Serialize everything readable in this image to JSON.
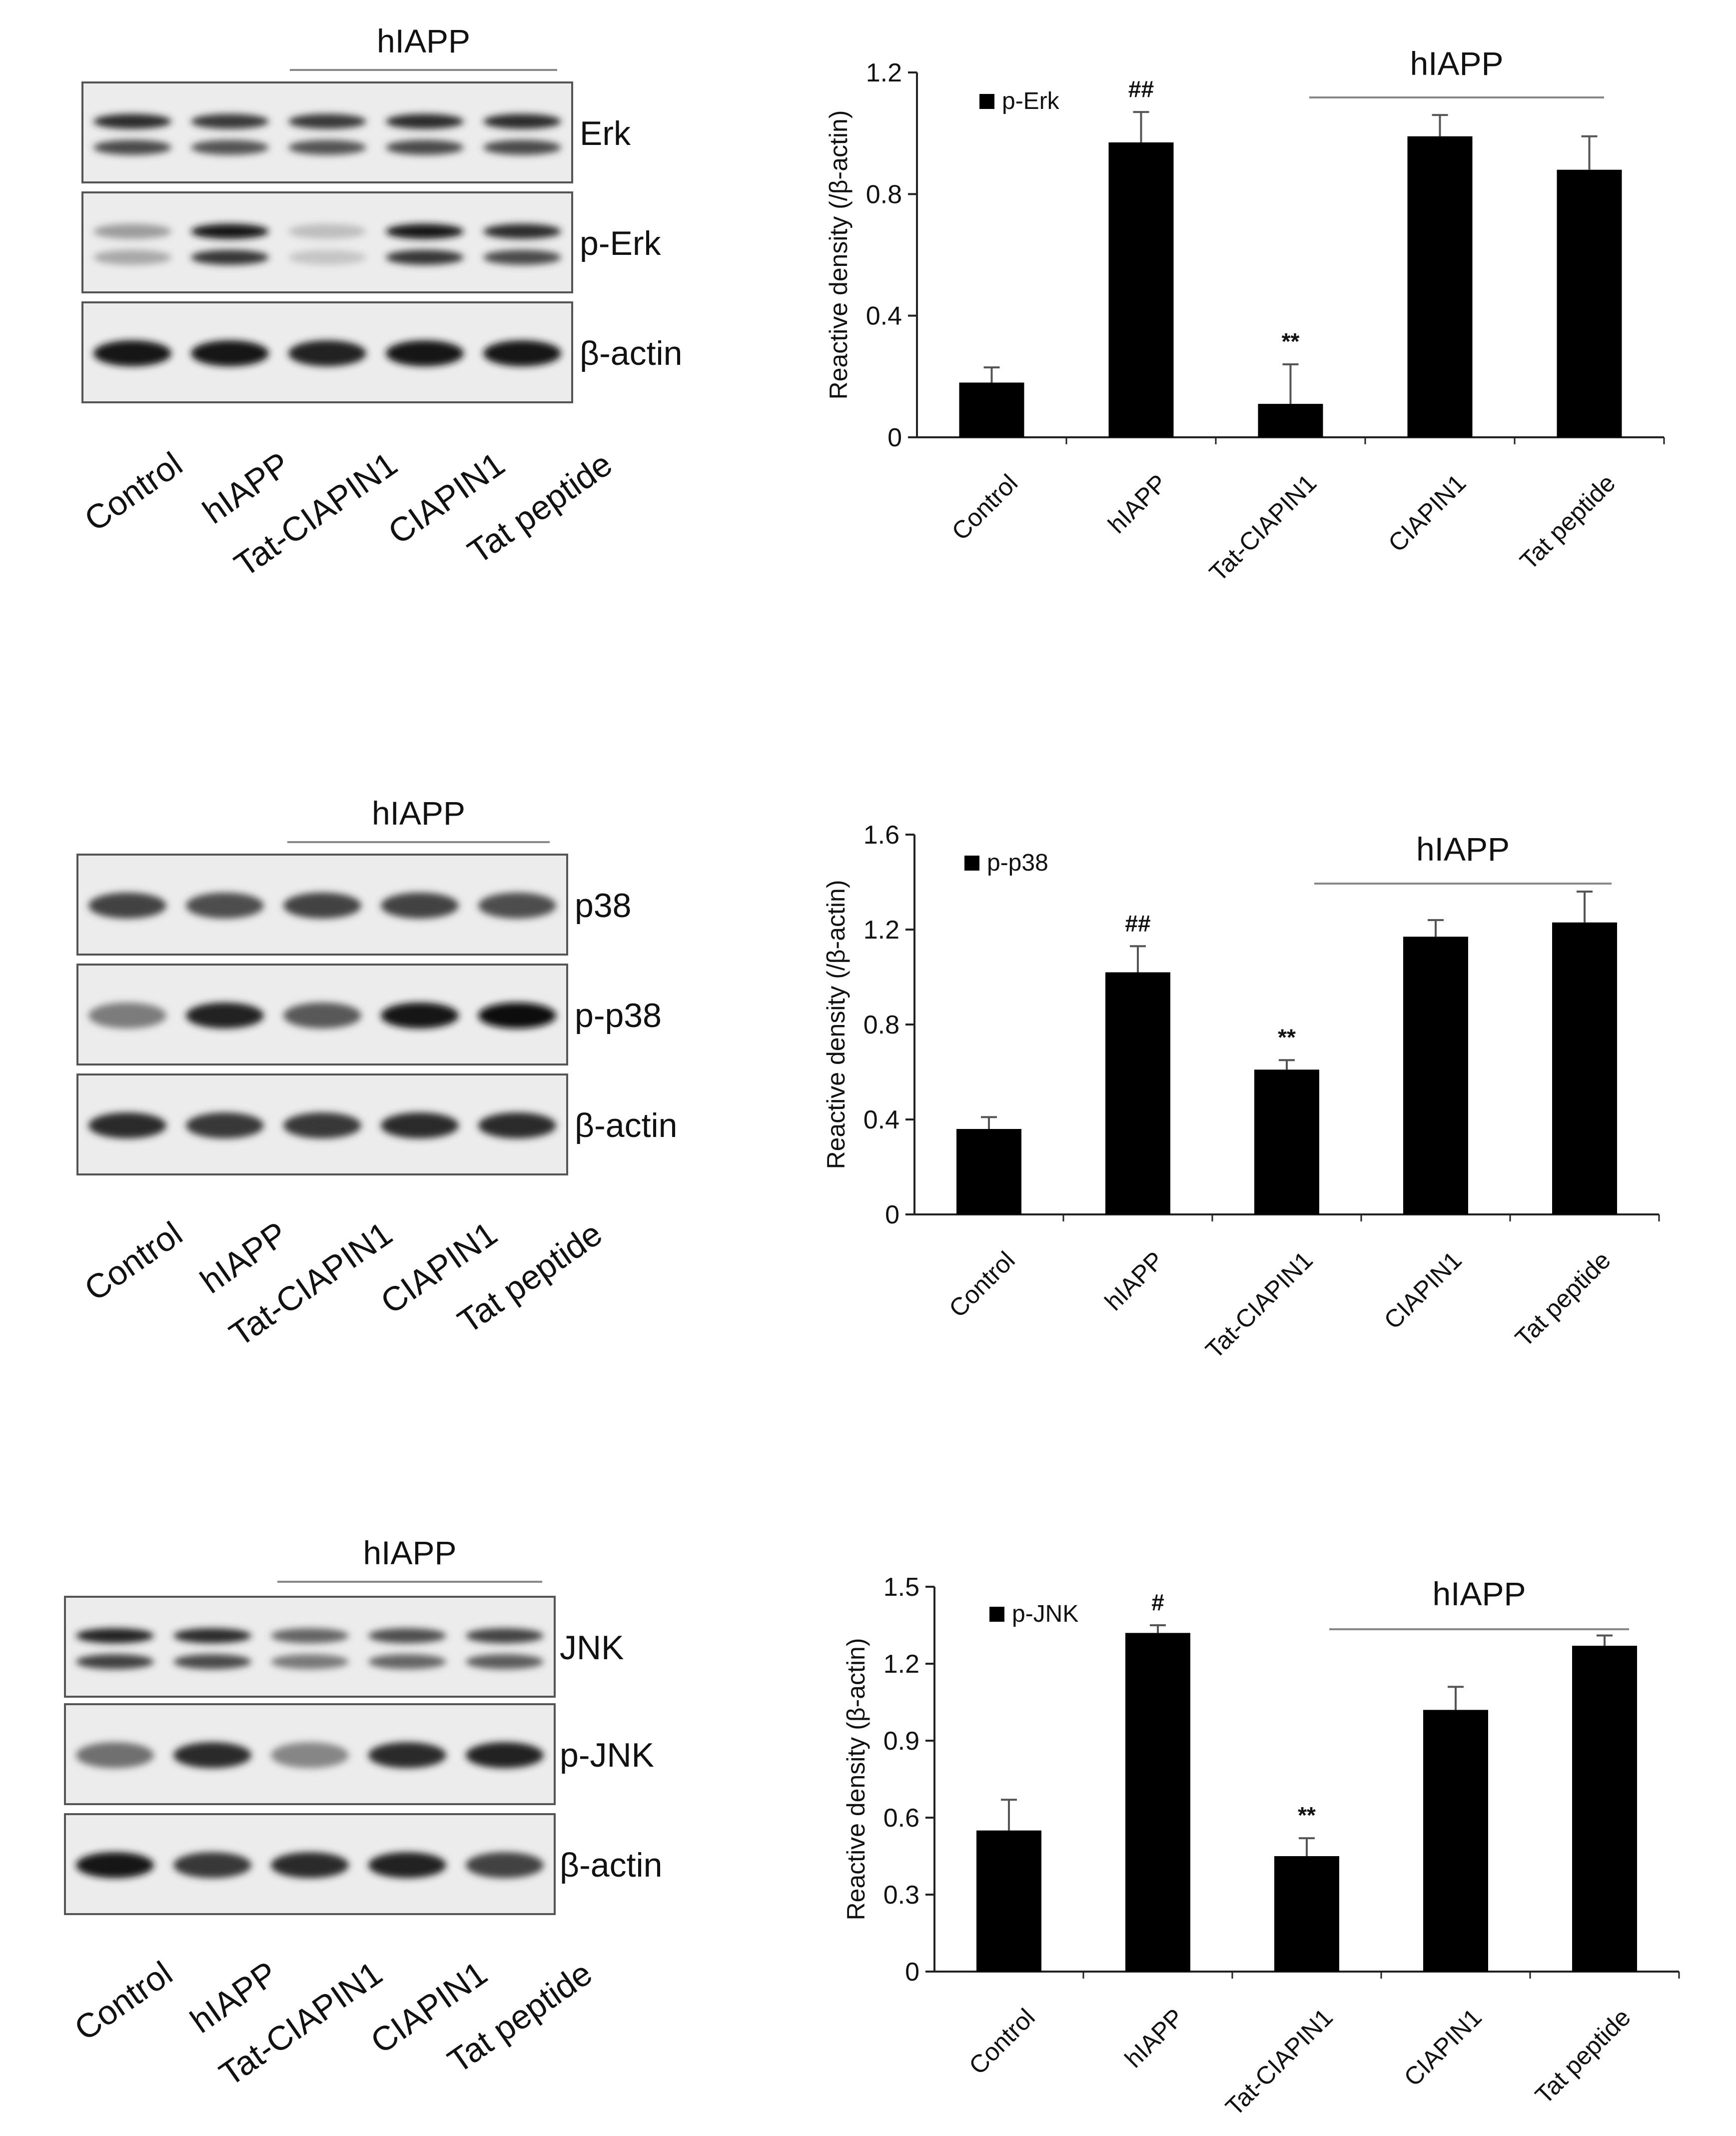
{
  "figure": {
    "panels": [
      {
        "id": "erk",
        "blot": {
          "group_label": "hIAPP",
          "rows": [
            {
              "label": "Erk",
              "bands": 2,
              "intensity": [
                0.85,
                0.8,
                0.8,
                0.85,
                0.85
              ]
            },
            {
              "label": "p-Erk",
              "bands": 2,
              "intensity": [
                0.35,
                0.95,
                0.2,
                0.95,
                0.85
              ]
            },
            {
              "label": "β-actin",
              "bands": 1,
              "intensity": [
                0.95,
                0.95,
                0.9,
                0.95,
                0.95
              ]
            }
          ],
          "lanes": [
            "Control",
            "hIAPP",
            "Tat-CIAPIN1",
            "CIAPIN1",
            "Tat peptide"
          ]
        }
      },
      {
        "id": "p38",
        "blot": {
          "group_label": "hIAPP",
          "rows": [
            {
              "label": "p38",
              "bands": 1,
              "intensity": [
                0.75,
                0.7,
                0.75,
                0.75,
                0.7
              ]
            },
            {
              "label": "p-p38",
              "bands": 1,
              "intensity": [
                0.5,
                0.9,
                0.65,
                0.95,
                1.0
              ]
            },
            {
              "label": "β-actin",
              "bands": 1,
              "intensity": [
                0.85,
                0.8,
                0.8,
                0.85,
                0.85
              ]
            }
          ],
          "lanes": [
            "Control",
            "hIAPP",
            "Tat-CIAPIN1",
            "CIAPIN1",
            "Tat peptide"
          ]
        }
      },
      {
        "id": "jnk",
        "blot": {
          "group_label": "hIAPP",
          "rows": [
            {
              "label": "JNK",
              "bands": 2,
              "intensity": [
                0.9,
                0.85,
                0.6,
                0.7,
                0.75
              ]
            },
            {
              "label": "p-JNK",
              "bands": 1,
              "intensity": [
                0.55,
                0.85,
                0.45,
                0.85,
                0.9
              ]
            },
            {
              "label": "β-actin",
              "bands": 1,
              "intensity": [
                0.95,
                0.8,
                0.85,
                0.9,
                0.75
              ]
            }
          ],
          "lanes": [
            "Control",
            "hIAPP",
            "Tat-CIAPIN1",
            "CIAPIN1",
            "Tat peptide"
          ]
        }
      }
    ]
  },
  "chart_data": [
    {
      "type": "bar",
      "title": "",
      "xlabel": "",
      "ylabel": "Reactive density (/β-actin)",
      "legend": "p-Erk",
      "legend_position": "top-left",
      "group_label": "hIAPP",
      "categories": [
        "Control",
        "hIAPP",
        "Tat-CIAPIN1",
        "CIAPIN1",
        "Tat peptide"
      ],
      "values": [
        0.18,
        0.97,
        0.11,
        0.99,
        0.88
      ],
      "errors": [
        0.05,
        0.1,
        0.13,
        0.07,
        0.11
      ],
      "annotations": [
        "",
        "##",
        "**",
        "",
        ""
      ],
      "yticks": [
        "0",
        "0.4",
        "0.8",
        "1.2"
      ],
      "ylim": [
        0,
        1.2
      ],
      "grid": false
    },
    {
      "type": "bar",
      "title": "",
      "xlabel": "",
      "ylabel": "Reactive density (/β-actin)",
      "legend": "p-p38",
      "legend_position": "top-left",
      "group_label": "hIAPP",
      "categories": [
        "Control",
        "hIAPP",
        "Tat-CIAPIN1",
        "CIAPIN1",
        "Tat peptide"
      ],
      "values": [
        0.36,
        1.02,
        0.61,
        1.17,
        1.23
      ],
      "errors": [
        0.05,
        0.11,
        0.04,
        0.07,
        0.13
      ],
      "annotations": [
        "",
        "##",
        "**",
        "",
        ""
      ],
      "yticks": [
        "0",
        "0.4",
        "0.8",
        "1.2",
        "1.6"
      ],
      "ylim": [
        0,
        1.6
      ],
      "grid": false
    },
    {
      "type": "bar",
      "title": "",
      "xlabel": "",
      "ylabel": "Reactive density (β-actin)",
      "legend": "p-JNK",
      "legend_position": "top-left",
      "group_label": "hIAPP",
      "categories": [
        "Control",
        "hIAPP",
        "Tat-CIAPIN1",
        "CIAPIN1",
        "Tat peptide"
      ],
      "values": [
        0.55,
        1.32,
        0.45,
        1.02,
        1.27
      ],
      "errors": [
        0.12,
        0.03,
        0.07,
        0.09,
        0.04
      ],
      "annotations": [
        "",
        "#",
        "**",
        "",
        ""
      ],
      "yticks": [
        "0",
        "0.3",
        "0.6",
        "0.9",
        "1.2",
        "1.5"
      ],
      "ylim": [
        0,
        1.5
      ],
      "grid": false
    }
  ]
}
